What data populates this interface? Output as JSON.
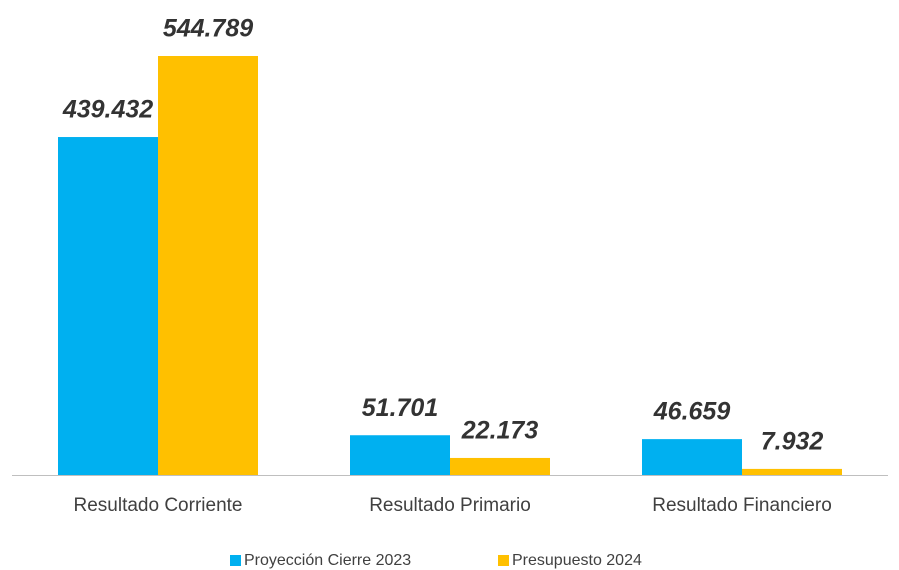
{
  "chart_data": {
    "type": "bar",
    "categories": [
      "Resultado Corriente",
      "Resultado Primario",
      "Resultado Financiero"
    ],
    "series": [
      {
        "name": "Proyección Cierre 2023",
        "color": "#00b0f0",
        "values": [
          439432,
          51701,
          46659
        ],
        "value_labels": [
          "439.432",
          "51.701",
          "46.659"
        ]
      },
      {
        "name": "Presupuesto 2024",
        "color": "#ffc000",
        "values": [
          544789,
          22173,
          7932
        ],
        "value_labels": [
          "544.789",
          "22.173",
          "7.932"
        ]
      }
    ]
  }
}
